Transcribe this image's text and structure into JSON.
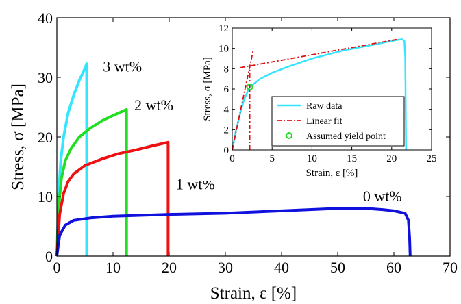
{
  "chart_data": [
    {
      "type": "line",
      "title": "",
      "xlabel": "Strain, ε [%]",
      "ylabel": "Stress, σ [MPa]",
      "xlim": [
        0,
        70
      ],
      "ylim": [
        0,
        40
      ],
      "xticks": [
        0,
        10,
        20,
        30,
        40,
        50,
        60,
        70
      ],
      "yticks": [
        0,
        10,
        20,
        30,
        40
      ],
      "grid": false,
      "series": [
        {
          "name": "3 wt%",
          "color": "#33e5ff",
          "x": [
            0,
            0.3,
            0.7,
            1.2,
            2.0,
            3.0,
            4.0,
            5.0,
            5.3,
            5.3
          ],
          "y": [
            0,
            10,
            16,
            20,
            24,
            27,
            29.5,
            31.5,
            32.3,
            0
          ]
        },
        {
          "name": "2 wt%",
          "color": "#22dd22",
          "x": [
            0,
            0.3,
            0.8,
            1.5,
            2.5,
            4.0,
            6.0,
            8.0,
            10.0,
            12.4,
            12.4
          ],
          "y": [
            0,
            8,
            13,
            16,
            18,
            20,
            21.5,
            22.7,
            23.6,
            24.6,
            0
          ]
        },
        {
          "name": "1 wt%",
          "color": "#ee1111",
          "x": [
            0,
            0.5,
            1.2,
            2.0,
            3.0,
            5.0,
            8.0,
            11.0,
            14.0,
            17.0,
            19.8,
            19.8
          ],
          "y": [
            0,
            7,
            10.5,
            12.5,
            13.8,
            15.2,
            16.3,
            17.2,
            17.8,
            18.5,
            19.1,
            0
          ]
        },
        {
          "name": "0 wt%",
          "color": "#1111dd",
          "x": [
            0,
            0.5,
            1.5,
            3.0,
            6.0,
            10,
            20,
            30,
            40,
            50,
            55,
            58,
            60,
            62,
            62.6,
            62.8,
            62.9
          ],
          "y": [
            0,
            3.5,
            5.2,
            6.0,
            6.4,
            6.7,
            7.0,
            7.2,
            7.6,
            8.0,
            8.0,
            7.8,
            7.6,
            7.2,
            6.0,
            3.0,
            0
          ]
        }
      ],
      "annotations": [
        {
          "text": "3 wt%",
          "x": 8.2,
          "y": 31
        },
        {
          "text": "2 wt%",
          "x": 13.8,
          "y": 24.5
        },
        {
          "text": "1 wt%",
          "x": 21.2,
          "y": 11.2
        },
        {
          "text": "0 wt%",
          "x": 54.5,
          "y": 9.2
        }
      ]
    },
    {
      "type": "line",
      "title": "",
      "xlabel": "Strain, ε [%]",
      "ylabel": "Stress, σ [MPa]",
      "xlim": [
        0,
        25
      ],
      "ylim": [
        0,
        12
      ],
      "xticks": [
        0,
        5,
        10,
        15,
        20,
        25
      ],
      "yticks": [
        0,
        2,
        4,
        6,
        8,
        10,
        12
      ],
      "grid": false,
      "legend": "lower-center",
      "series": [
        {
          "name": "Raw data",
          "color": "#33e5ff",
          "style": "solid",
          "x": [
            0,
            0.5,
            1.0,
            1.5,
            2.2,
            3.5,
            5.0,
            7.0,
            10.0,
            14.0,
            18.0,
            20.5,
            21.3,
            21.6,
            21.7,
            21.8
          ],
          "y": [
            0,
            2.0,
            3.6,
            5.0,
            6.2,
            7.0,
            7.6,
            8.2,
            9.0,
            9.8,
            10.4,
            10.8,
            10.9,
            10.7,
            9.0,
            0
          ]
        },
        {
          "name": "Linear fit",
          "color": "#dd1111",
          "style": "dashdot",
          "segments": [
            {
              "x": [
                0,
                2.6
              ],
              "y": [
                0,
                9.7
              ]
            },
            {
              "x": [
                1.0,
                20.8
              ],
              "y": [
                8.1,
                10.9
              ]
            },
            {
              "x": [
                2.2,
                2.2
              ],
              "y": [
                0,
                8.4
              ]
            }
          ]
        },
        {
          "name": "Assumed yield point",
          "color": "#22dd22",
          "style": "marker",
          "x": [
            2.2
          ],
          "y": [
            6.2
          ]
        }
      ]
    }
  ]
}
